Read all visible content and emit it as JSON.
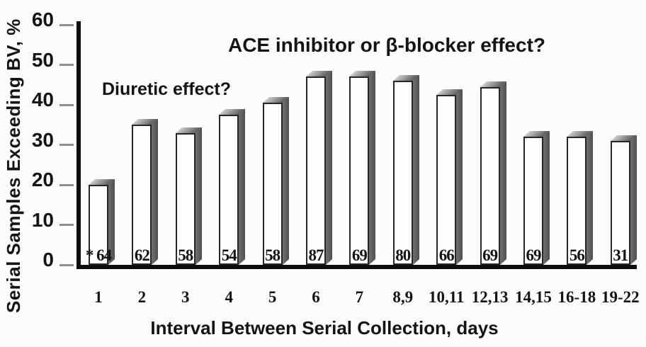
{
  "chart_data": {
    "type": "bar",
    "title": "",
    "ylabel": "Serial Samples Exceeding BV, %",
    "xlabel": "Interval Between Serial Collection, days",
    "ylim": [
      0,
      60
    ],
    "yticks": [
      0,
      10,
      20,
      30,
      40,
      50,
      60
    ],
    "grid": false,
    "legend_position": "none",
    "categories": [
      "1",
      "2",
      "3",
      "4",
      "5",
      "6",
      "7",
      "8,9",
      "10,11",
      "12,13",
      "14,15",
      "16-18",
      "19-22"
    ],
    "values": [
      20,
      35,
      33,
      37.5,
      40.5,
      47,
      47,
      46,
      42.5,
      44.5,
      32,
      32,
      31
    ],
    "bar_base_labels": [
      "* 64",
      "62",
      "58",
      "54",
      "58",
      "87",
      "69",
      "80",
      "66",
      "69",
      "69",
      "56",
      "31"
    ],
    "footnote_marker": "*",
    "annotations": {
      "diuretic": "Diuretic effect?",
      "ace": "ACE inhibitor or β-blocker effect?"
    },
    "colors": {
      "front_color": "#fdfdfd",
      "outline_color": "#262626",
      "side_color": "#4f4f4f",
      "top_light": "#cccccc",
      "top_dark": "#5a5a5a",
      "axis_color": "#0d0d0d",
      "tick_color": "#8f8f8f",
      "text_color": "#141414"
    }
  }
}
